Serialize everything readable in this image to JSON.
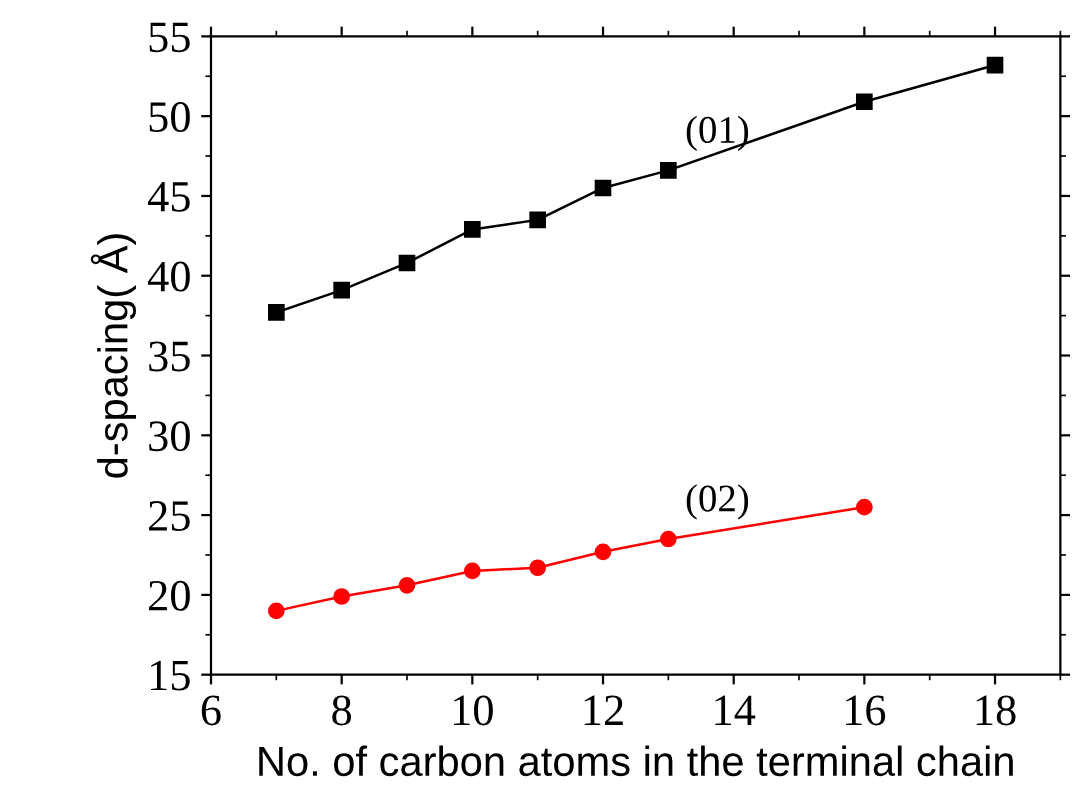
{
  "chart_data": {
    "type": "line",
    "xlabel": "No. of carbon atoms in the terminal chain",
    "ylabel": "d-spacing( Å)",
    "xlim": [
      6,
      19
    ],
    "xticks": [
      6,
      8,
      10,
      12,
      14,
      16,
      18
    ],
    "ylim": [
      15,
      55
    ],
    "yticks": [
      15,
      20,
      25,
      30,
      35,
      40,
      45,
      50,
      55
    ],
    "grid": false,
    "legend": false,
    "series": [
      {
        "name": "(01)",
        "color": "#000000",
        "marker": "square",
        "x": [
          7,
          8,
          9,
          10,
          11,
          12,
          13,
          16,
          18
        ],
        "values": [
          37.7,
          39.1,
          40.8,
          42.9,
          43.5,
          45.5,
          46.6,
          50.9,
          53.2
        ]
      },
      {
        "name": "(02)",
        "color": "#ff0000",
        "marker": "circle",
        "x": [
          7,
          8,
          9,
          10,
          11,
          12,
          13,
          16
        ],
        "values": [
          19.0,
          19.9,
          20.6,
          21.5,
          21.7,
          22.7,
          23.5,
          25.5
        ]
      }
    ]
  }
}
